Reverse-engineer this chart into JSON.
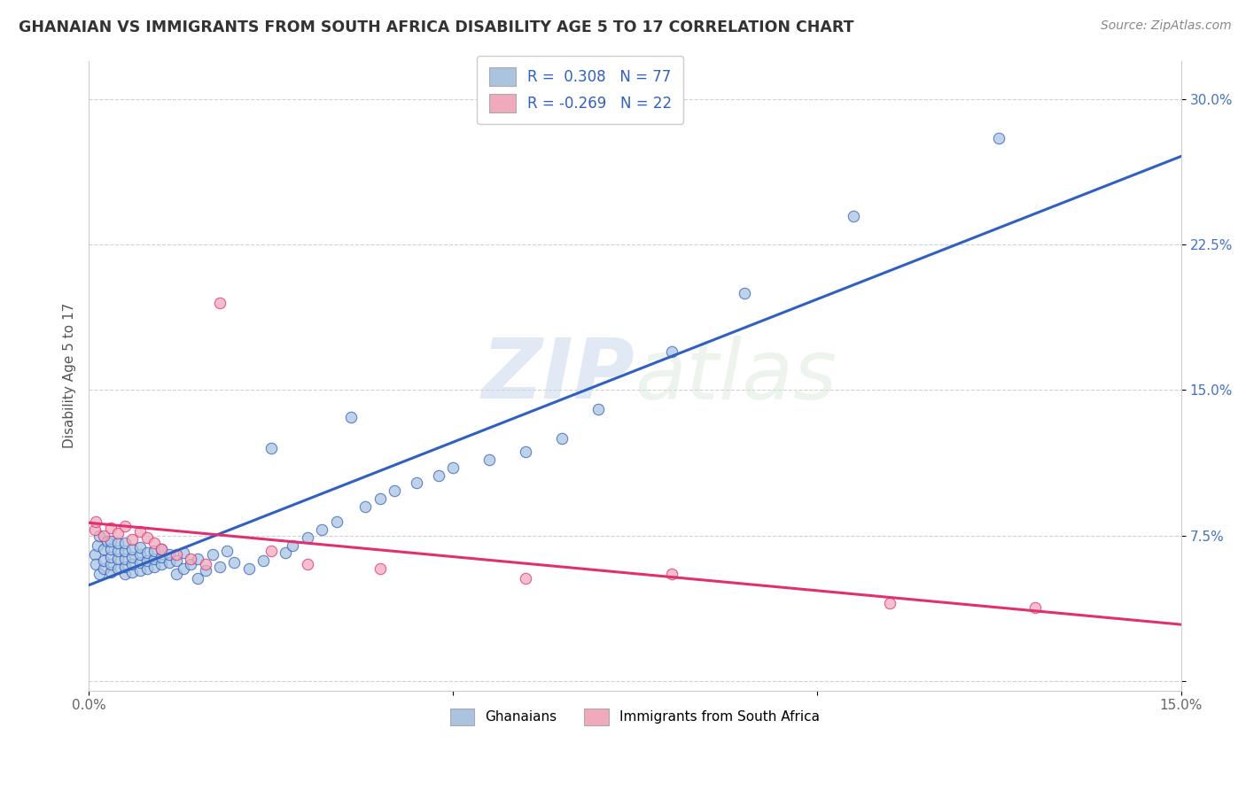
{
  "title": "GHANAIAN VS IMMIGRANTS FROM SOUTH AFRICA DISABILITY AGE 5 TO 17 CORRELATION CHART",
  "source_text": "Source: ZipAtlas.com",
  "ylabel": "Disability Age 5 to 17",
  "xlim": [
    0.0,
    0.15
  ],
  "ylim": [
    -0.005,
    0.32
  ],
  "r_ghanaian": 0.308,
  "n_ghanaian": 77,
  "r_immigrant": -0.269,
  "n_immigrant": 22,
  "ghanaian_color": "#aac4e0",
  "immigrant_color": "#f0aabb",
  "line_ghanaian_color": "#3060c0",
  "line_immigrant_color": "#e03070",
  "background_color": "#ffffff",
  "grid_color": "#cccccc",
  "watermark_zip": "ZIP",
  "watermark_atlas": "atlas",
  "legend_items": [
    "Ghanaians",
    "Immigrants from South Africa"
  ],
  "legend_text_color": "#3060c0",
  "yticks": [
    0.0,
    0.075,
    0.15,
    0.225,
    0.3
  ],
  "ytick_labels": [
    "",
    "7.5%",
    "15.0%",
    "22.5%",
    "30.0%"
  ],
  "xtick_vals": [
    0.0,
    0.05,
    0.1,
    0.15
  ],
  "xtick_labels": [
    "0.0%",
    "",
    "",
    "15.0%"
  ],
  "gh_x": [
    0.0008,
    0.001,
    0.0012,
    0.0015,
    0.0015,
    0.002,
    0.002,
    0.002,
    0.0025,
    0.003,
    0.003,
    0.003,
    0.003,
    0.003,
    0.004,
    0.004,
    0.004,
    0.004,
    0.005,
    0.005,
    0.005,
    0.005,
    0.005,
    0.006,
    0.006,
    0.006,
    0.006,
    0.007,
    0.007,
    0.007,
    0.007,
    0.008,
    0.008,
    0.008,
    0.009,
    0.009,
    0.009,
    0.01,
    0.01,
    0.01,
    0.011,
    0.011,
    0.012,
    0.012,
    0.013,
    0.013,
    0.014,
    0.015,
    0.015,
    0.016,
    0.017,
    0.018,
    0.019,
    0.02,
    0.022,
    0.024,
    0.025,
    0.027,
    0.028,
    0.03,
    0.032,
    0.034,
    0.036,
    0.038,
    0.04,
    0.042,
    0.045,
    0.048,
    0.05,
    0.055,
    0.06,
    0.065,
    0.07,
    0.08,
    0.09,
    0.105,
    0.125
  ],
  "gh_y": [
    0.065,
    0.06,
    0.07,
    0.055,
    0.075,
    0.058,
    0.062,
    0.068,
    0.072,
    0.056,
    0.06,
    0.064,
    0.068,
    0.072,
    0.058,
    0.063,
    0.067,
    0.071,
    0.055,
    0.059,
    0.063,
    0.067,
    0.071,
    0.056,
    0.06,
    0.064,
    0.068,
    0.057,
    0.061,
    0.065,
    0.069,
    0.058,
    0.062,
    0.066,
    0.059,
    0.063,
    0.067,
    0.06,
    0.064,
    0.068,
    0.061,
    0.065,
    0.055,
    0.062,
    0.058,
    0.066,
    0.06,
    0.053,
    0.063,
    0.057,
    0.065,
    0.059,
    0.067,
    0.061,
    0.058,
    0.062,
    0.12,
    0.066,
    0.07,
    0.074,
    0.078,
    0.082,
    0.136,
    0.09,
    0.094,
    0.098,
    0.102,
    0.106,
    0.11,
    0.114,
    0.118,
    0.125,
    0.14,
    0.17,
    0.2,
    0.24,
    0.28
  ],
  "im_x": [
    0.0008,
    0.001,
    0.002,
    0.003,
    0.004,
    0.005,
    0.006,
    0.007,
    0.008,
    0.009,
    0.01,
    0.012,
    0.014,
    0.016,
    0.018,
    0.025,
    0.03,
    0.04,
    0.06,
    0.08,
    0.11,
    0.13
  ],
  "im_y": [
    0.078,
    0.082,
    0.075,
    0.079,
    0.076,
    0.08,
    0.073,
    0.077,
    0.074,
    0.071,
    0.068,
    0.065,
    0.063,
    0.06,
    0.195,
    0.067,
    0.06,
    0.058,
    0.053,
    0.055,
    0.04,
    0.038
  ]
}
